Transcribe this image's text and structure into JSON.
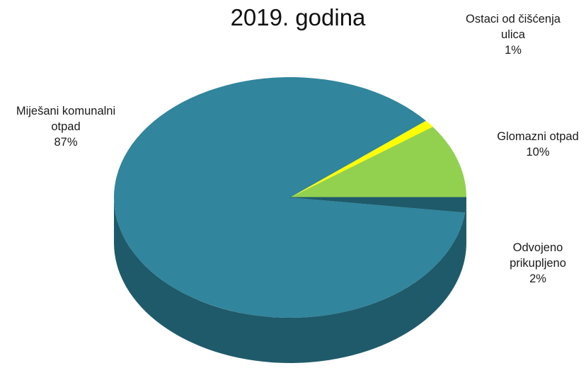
{
  "chart_data": {
    "type": "pie",
    "title": "2019. godina",
    "slices": [
      {
        "label_lines": [
          "Miješani komunalni",
          "otpad"
        ],
        "pct_text": "87%",
        "value": 87,
        "color": "#31859c",
        "side_color": "#1f5a6a"
      },
      {
        "label_lines": [
          "Ostaci od čišćenja",
          "ulica"
        ],
        "pct_text": "1%",
        "value": 1,
        "color": "#ffff00",
        "side_color": "#a8a800"
      },
      {
        "label_lines": [
          "Glomazni otpad"
        ],
        "pct_text": "10%",
        "value": 10,
        "color": "#92d050",
        "side_color": "#5e8a2f"
      },
      {
        "label_lines": [
          "Odvojeno",
          "prikupljeno"
        ],
        "pct_text": "2%",
        "value": 2,
        "color": "#31859c",
        "side_color": "#1f5a6a"
      }
    ],
    "style": "3d-pie"
  }
}
